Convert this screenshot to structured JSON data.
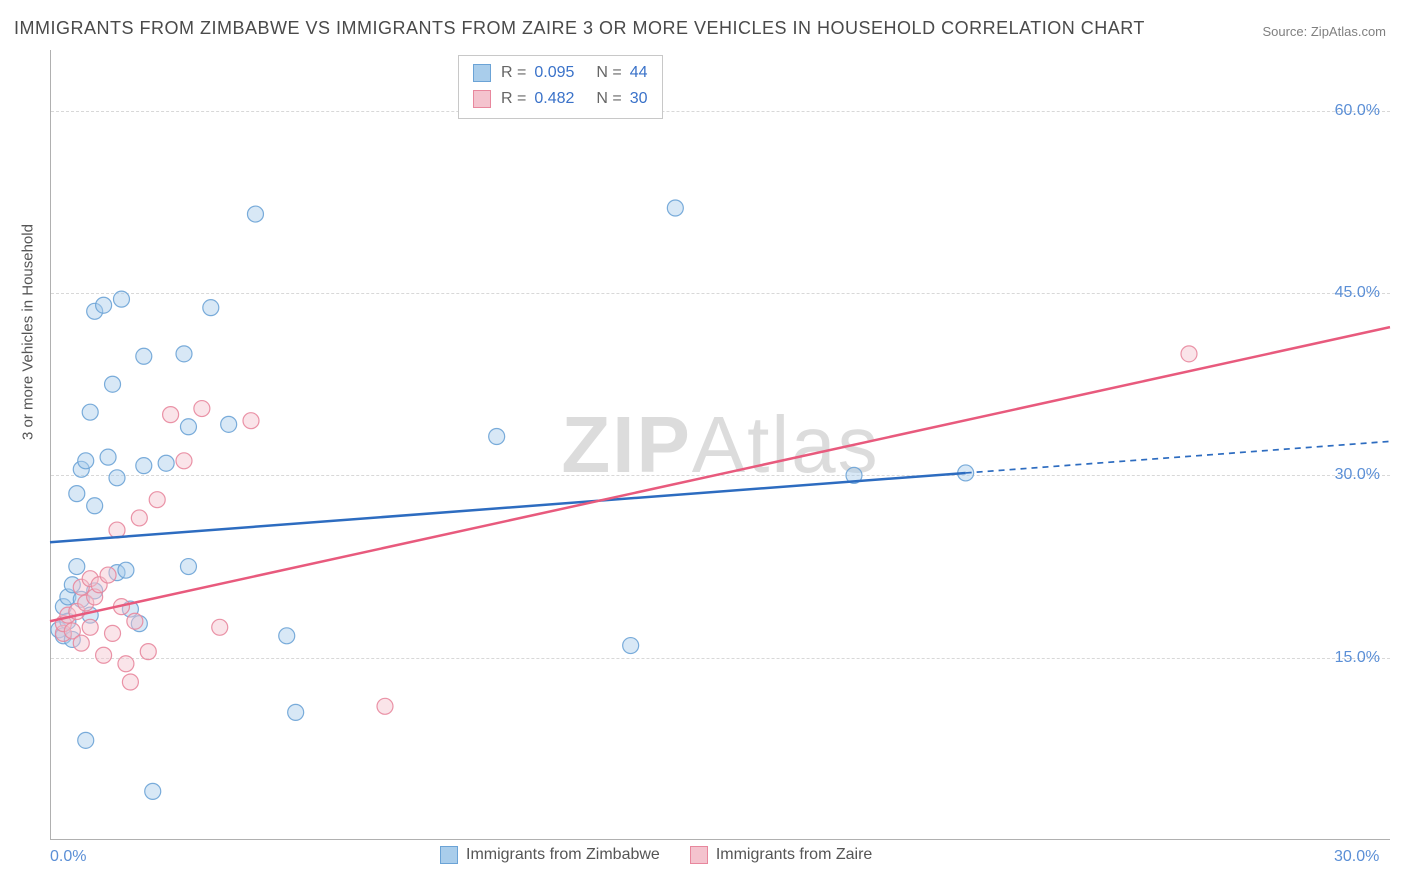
{
  "title": "IMMIGRANTS FROM ZIMBABWE VS IMMIGRANTS FROM ZAIRE 3 OR MORE VEHICLES IN HOUSEHOLD CORRELATION CHART",
  "source": "Source: ZipAtlas.com",
  "watermark_main": "ZIP",
  "watermark_sub": "Atlas",
  "y_axis_title": "3 or more Vehicles in Household",
  "chart": {
    "type": "scatter",
    "background_color": "#ffffff",
    "grid_color": "#d8d8d8",
    "axis_color": "#b0b0b0",
    "tick_label_color": "#5b8fd6",
    "tick_fontsize": 16,
    "title_fontsize": 18,
    "title_color": "#4a4a4a",
    "xlim": [
      0,
      30
    ],
    "ylim": [
      0,
      65
    ],
    "x_ticks": [
      {
        "value": 0,
        "label": "0.0%"
      },
      {
        "value": 30,
        "label": "30.0%"
      }
    ],
    "y_ticks": [
      {
        "value": 15,
        "label": "15.0%"
      },
      {
        "value": 30,
        "label": "30.0%"
      },
      {
        "value": 45,
        "label": "45.0%"
      },
      {
        "value": 60,
        "label": "60.0%"
      }
    ],
    "marker_radius": 8,
    "marker_fill_opacity": 0.45,
    "marker_stroke_opacity": 0.9,
    "marker_stroke_width": 1.2,
    "trend_line_width": 2.5,
    "trend_dash_pattern": "6 5"
  },
  "series": [
    {
      "id": "zimbabwe",
      "legend_label": "Immigrants from Zimbabwe",
      "R_label": "R =",
      "R": "0.095",
      "N_label": "N =",
      "N": "44",
      "fill_color": "#a9cdeb",
      "stroke_color": "#6ba3d6",
      "line_color": "#2d6cc0",
      "trend_solid": {
        "x1": 0,
        "y1": 24.5,
        "x2": 20.5,
        "y2": 30.2
      },
      "trend_dashed": {
        "x1": 20.5,
        "y1": 30.2,
        "x2": 30,
        "y2": 32.8
      },
      "points": [
        [
          0.2,
          17.3
        ],
        [
          0.3,
          16.8
        ],
        [
          0.3,
          19.2
        ],
        [
          0.4,
          18.0
        ],
        [
          0.4,
          20.0
        ],
        [
          0.5,
          21.0
        ],
        [
          0.5,
          16.5
        ],
        [
          0.6,
          22.5
        ],
        [
          0.6,
          28.5
        ],
        [
          0.7,
          19.8
        ],
        [
          0.7,
          30.5
        ],
        [
          0.8,
          31.2
        ],
        [
          0.8,
          8.2
        ],
        [
          0.9,
          35.2
        ],
        [
          0.9,
          18.5
        ],
        [
          1.0,
          20.5
        ],
        [
          1.0,
          27.5
        ],
        [
          1.0,
          43.5
        ],
        [
          1.2,
          44.0
        ],
        [
          1.3,
          31.5
        ],
        [
          1.4,
          37.5
        ],
        [
          1.5,
          22.0
        ],
        [
          1.5,
          29.8
        ],
        [
          1.6,
          44.5
        ],
        [
          1.7,
          22.2
        ],
        [
          1.8,
          19.0
        ],
        [
          2.0,
          17.8
        ],
        [
          2.1,
          39.8
        ],
        [
          2.1,
          30.8
        ],
        [
          2.3,
          4.0
        ],
        [
          2.6,
          31.0
        ],
        [
          3.0,
          40.0
        ],
        [
          3.1,
          34.0
        ],
        [
          3.1,
          22.5
        ],
        [
          3.6,
          43.8
        ],
        [
          4.0,
          34.2
        ],
        [
          4.6,
          51.5
        ],
        [
          5.3,
          16.8
        ],
        [
          5.5,
          10.5
        ],
        [
          10.0,
          33.2
        ],
        [
          13.0,
          16.0
        ],
        [
          14.0,
          52.0
        ],
        [
          18.0,
          30.0
        ],
        [
          20.5,
          30.2
        ]
      ]
    },
    {
      "id": "zaire",
      "legend_label": "Immigrants from Zaire",
      "R_label": "R =",
      "R": "0.482",
      "N_label": "N =",
      "N": "30",
      "fill_color": "#f4c3ce",
      "stroke_color": "#e8879d",
      "line_color": "#e85a7d",
      "trend_solid": {
        "x1": 0,
        "y1": 18.0,
        "x2": 30,
        "y2": 42.2
      },
      "trend_dashed": null,
      "points": [
        [
          0.3,
          17.0
        ],
        [
          0.3,
          17.8
        ],
        [
          0.4,
          18.5
        ],
        [
          0.5,
          17.2
        ],
        [
          0.6,
          18.8
        ],
        [
          0.7,
          20.8
        ],
        [
          0.7,
          16.2
        ],
        [
          0.8,
          19.5
        ],
        [
          0.9,
          21.5
        ],
        [
          0.9,
          17.5
        ],
        [
          1.0,
          20.0
        ],
        [
          1.1,
          21.0
        ],
        [
          1.2,
          15.2
        ],
        [
          1.3,
          21.8
        ],
        [
          1.4,
          17.0
        ],
        [
          1.5,
          25.5
        ],
        [
          1.6,
          19.2
        ],
        [
          1.7,
          14.5
        ],
        [
          1.8,
          13.0
        ],
        [
          1.9,
          18.0
        ],
        [
          2.0,
          26.5
        ],
        [
          2.2,
          15.5
        ],
        [
          2.4,
          28.0
        ],
        [
          2.7,
          35.0
        ],
        [
          3.0,
          31.2
        ],
        [
          3.4,
          35.5
        ],
        [
          3.8,
          17.5
        ],
        [
          4.5,
          34.5
        ],
        [
          7.5,
          11.0
        ],
        [
          25.5,
          40.0
        ]
      ]
    }
  ]
}
